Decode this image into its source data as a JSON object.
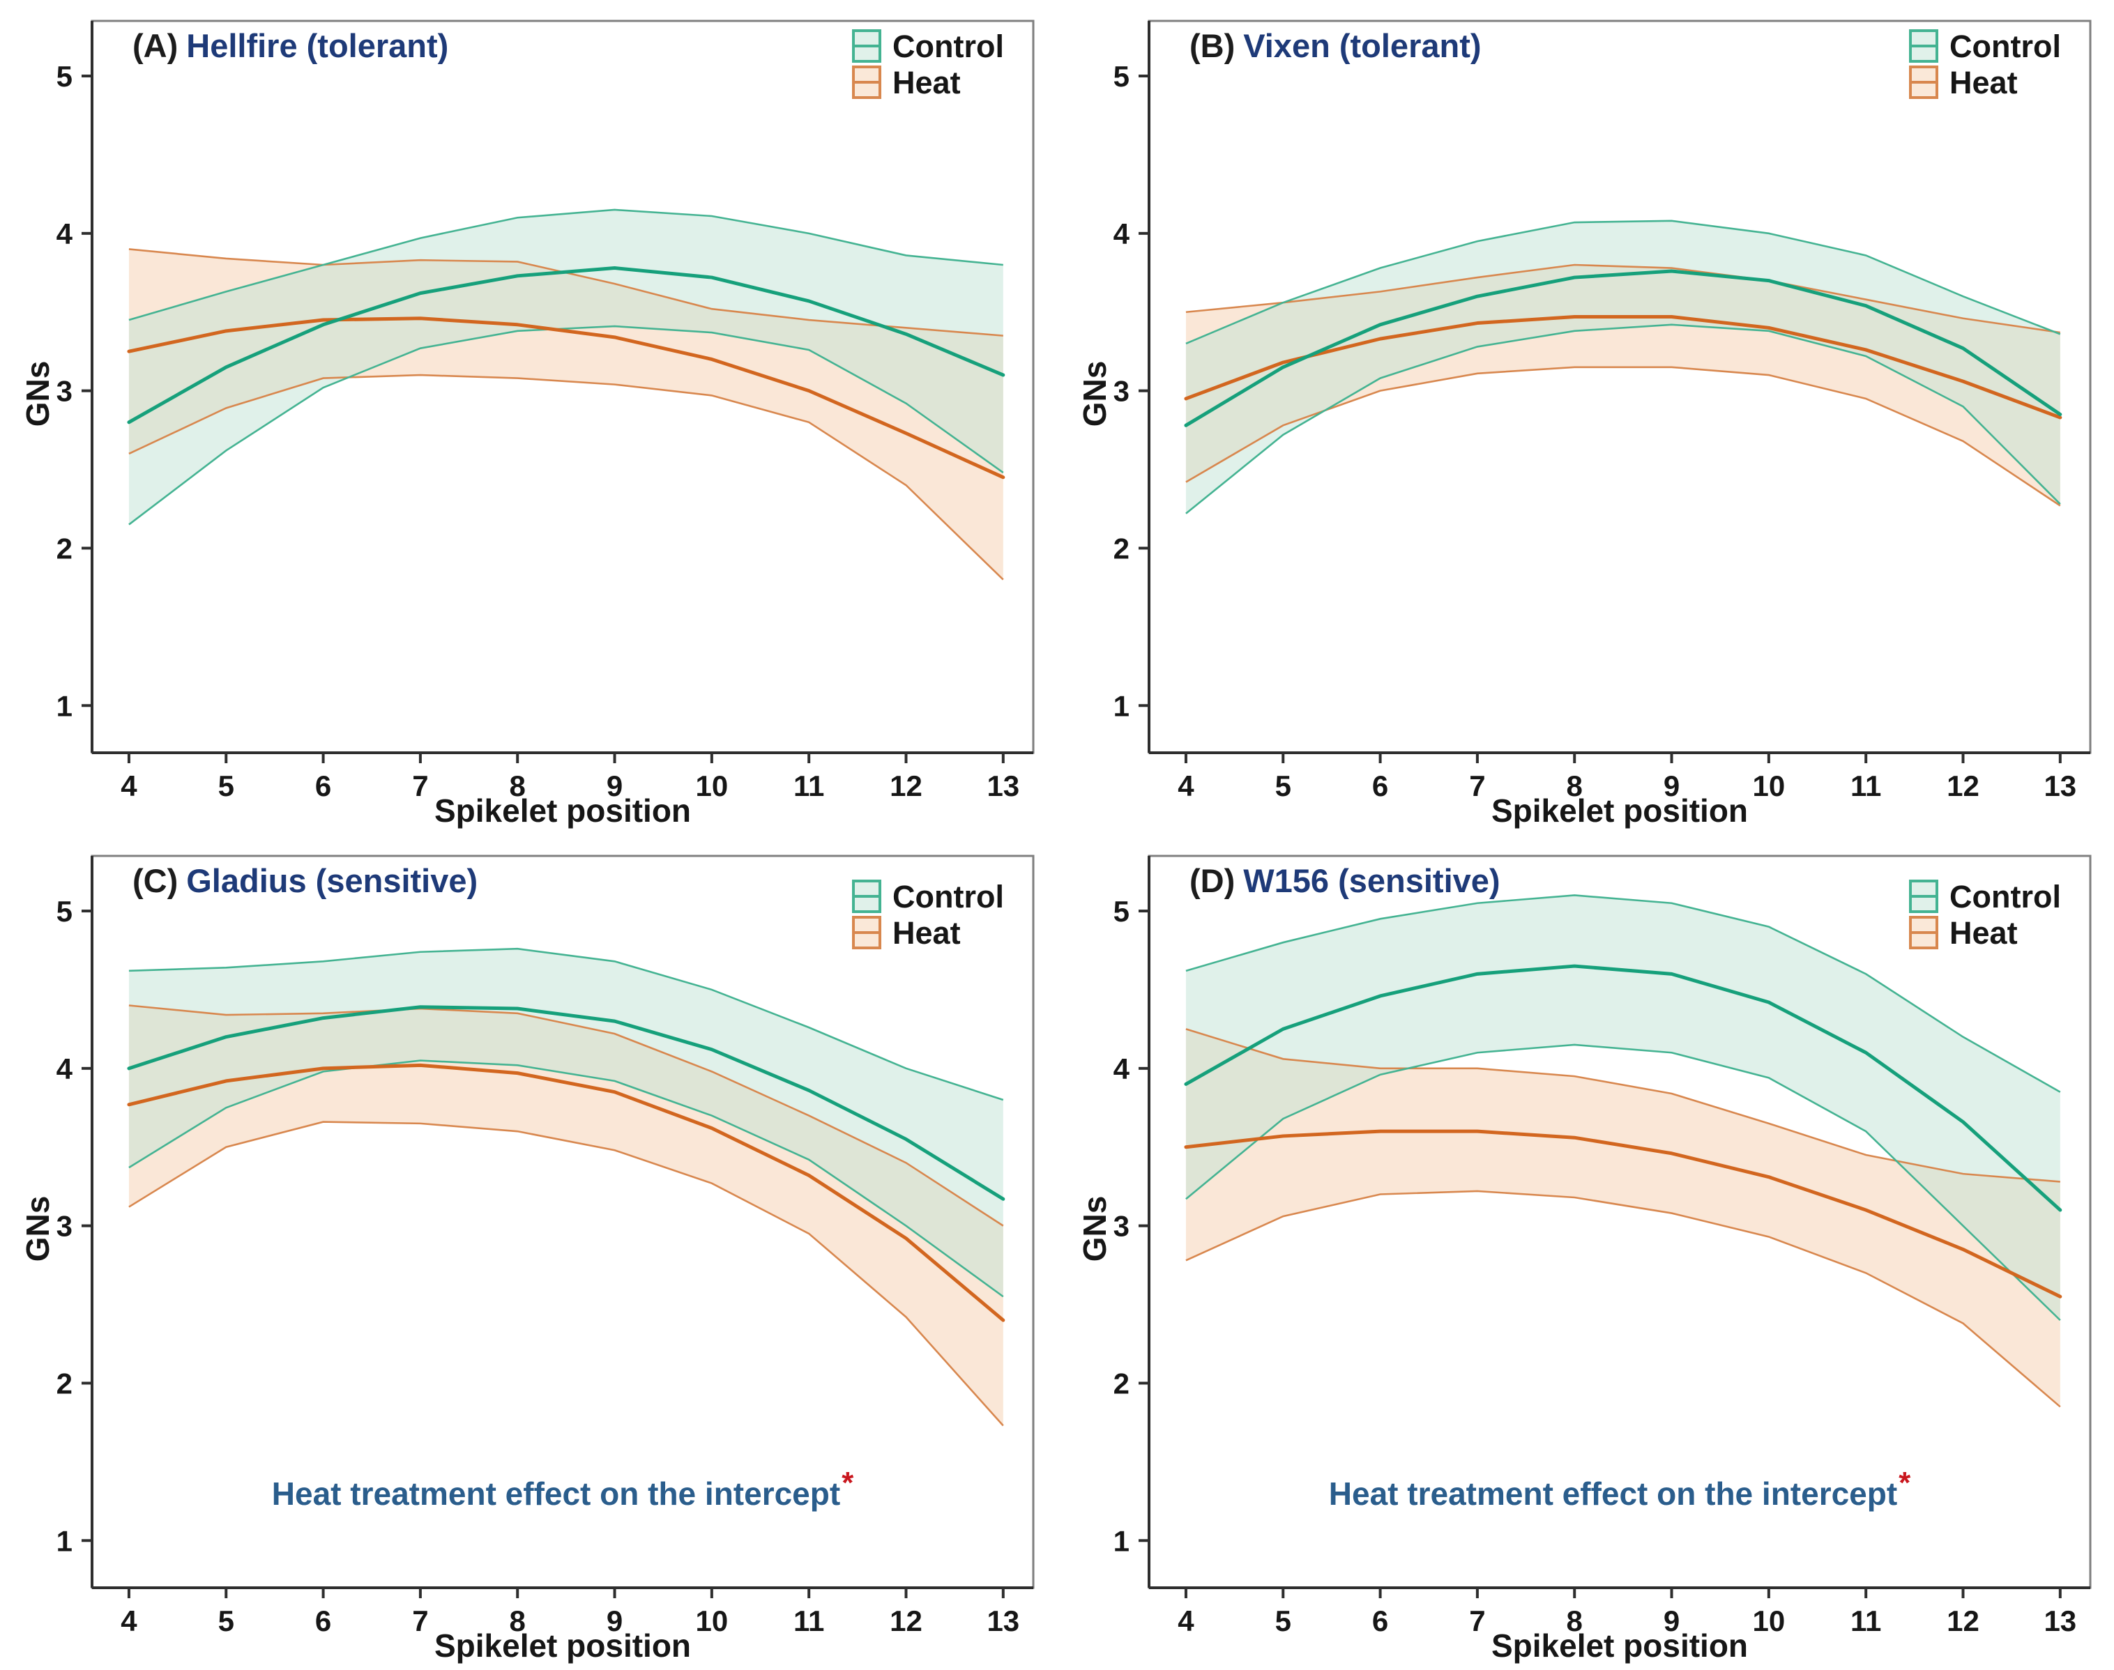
{
  "figure": {
    "ylabel": "GNs",
    "xlabel": "Spikelet position",
    "legend": {
      "control": "Control",
      "heat": "Heat"
    },
    "colors": {
      "control_line": "#16a07b",
      "control_edge": "#44b392",
      "control_fill": "#c2e3d6",
      "control_fill_light": "#e0f1ea",
      "heat_line": "#d2661f",
      "heat_edge": "#d8874e",
      "heat_fill": "#f6d0b0",
      "heat_fill_light": "#fae8d8",
      "panel_border": "#7f7f7f",
      "axis": "#2e2e2e",
      "tick_label": "#161616",
      "title_label_black": "#1c1c1c",
      "title_navy": "#1e3a78",
      "annotation_blue": "#2a5d8c",
      "annotation_star_red": "#c9161d"
    }
  },
  "chart_data": [
    {
      "type": "line",
      "panel_label": "(A)",
      "title": "Hellfire (tolerant)",
      "xlabel": "Spikelet position",
      "ylabel": "GNs",
      "xlim": [
        3.62,
        13.31
      ],
      "ylim": [
        0.7,
        5.35
      ],
      "xticks": [
        4,
        5,
        6,
        7,
        8,
        9,
        10,
        11,
        12,
        13
      ],
      "yticks": [
        1,
        2,
        3,
        4,
        5
      ],
      "grid": false,
      "legend": [
        "Control",
        "Heat"
      ],
      "legend_position": "top-right",
      "x": [
        4,
        5,
        6,
        7,
        8,
        9,
        10,
        11,
        12,
        13
      ],
      "series": [
        {
          "name": "Control",
          "mean": [
            2.8,
            3.15,
            3.42,
            3.62,
            3.73,
            3.78,
            3.72,
            3.57,
            3.36,
            3.1
          ],
          "upper": [
            3.45,
            3.63,
            3.8,
            3.97,
            4.1,
            4.15,
            4.11,
            4.0,
            3.86,
            3.8
          ],
          "lower": [
            2.15,
            2.62,
            3.02,
            3.27,
            3.38,
            3.41,
            3.37,
            3.26,
            2.92,
            2.48
          ]
        },
        {
          "name": "Heat",
          "mean": [
            3.25,
            3.38,
            3.45,
            3.46,
            3.42,
            3.34,
            3.2,
            3.0,
            2.73,
            2.45
          ],
          "upper": [
            3.9,
            3.84,
            3.8,
            3.83,
            3.82,
            3.68,
            3.52,
            3.45,
            3.4,
            3.35
          ],
          "lower": [
            2.6,
            2.89,
            3.08,
            3.1,
            3.08,
            3.04,
            2.97,
            2.8,
            2.4,
            1.8
          ]
        }
      ],
      "annotation": null
    },
    {
      "type": "line",
      "panel_label": "(B)",
      "title": "Vixen (tolerant)",
      "xlabel": "Spikelet position",
      "ylabel": "GNs",
      "xlim": [
        3.62,
        13.31
      ],
      "ylim": [
        0.7,
        5.35
      ],
      "xticks": [
        4,
        5,
        6,
        7,
        8,
        9,
        10,
        11,
        12,
        13
      ],
      "yticks": [
        1,
        2,
        3,
        4,
        5
      ],
      "grid": false,
      "legend": [
        "Control",
        "Heat"
      ],
      "legend_position": "top-right",
      "x": [
        4,
        5,
        6,
        7,
        8,
        9,
        10,
        11,
        12,
        13
      ],
      "series": [
        {
          "name": "Control",
          "mean": [
            2.78,
            3.15,
            3.42,
            3.6,
            3.72,
            3.76,
            3.7,
            3.54,
            3.27,
            2.85
          ],
          "upper": [
            3.3,
            3.56,
            3.78,
            3.95,
            4.07,
            4.08,
            4.0,
            3.86,
            3.6,
            3.36
          ],
          "lower": [
            2.22,
            2.72,
            3.08,
            3.28,
            3.38,
            3.42,
            3.38,
            3.22,
            2.9,
            2.28
          ]
        },
        {
          "name": "Heat",
          "mean": [
            2.95,
            3.18,
            3.33,
            3.43,
            3.47,
            3.47,
            3.4,
            3.26,
            3.06,
            2.83
          ],
          "upper": [
            3.5,
            3.56,
            3.63,
            3.72,
            3.8,
            3.78,
            3.7,
            3.58,
            3.46,
            3.37
          ],
          "lower": [
            2.42,
            2.78,
            3.0,
            3.11,
            3.15,
            3.15,
            3.1,
            2.95,
            2.68,
            2.27
          ]
        }
      ],
      "annotation": null
    },
    {
      "type": "line",
      "panel_label": "(C)",
      "title": "Gladius (sensitive)",
      "xlabel": "Spikelet position",
      "ylabel": "GNs",
      "xlim": [
        3.62,
        13.31
      ],
      "ylim": [
        0.7,
        5.35
      ],
      "xticks": [
        4,
        5,
        6,
        7,
        8,
        9,
        10,
        11,
        12,
        13
      ],
      "yticks": [
        1,
        2,
        3,
        4,
        5
      ],
      "grid": false,
      "legend": [
        "Control",
        "Heat"
      ],
      "legend_position": "top-right",
      "x": [
        4,
        5,
        6,
        7,
        8,
        9,
        10,
        11,
        12,
        13
      ],
      "series": [
        {
          "name": "Control",
          "mean": [
            4.0,
            4.2,
            4.32,
            4.39,
            4.38,
            4.3,
            4.12,
            3.86,
            3.55,
            3.17
          ],
          "upper": [
            4.62,
            4.64,
            4.68,
            4.74,
            4.76,
            4.68,
            4.5,
            4.26,
            4.0,
            3.8
          ],
          "lower": [
            3.37,
            3.75,
            3.98,
            4.05,
            4.02,
            3.92,
            3.7,
            3.42,
            3.0,
            2.55
          ]
        },
        {
          "name": "Heat",
          "mean": [
            3.77,
            3.92,
            4.0,
            4.02,
            3.97,
            3.85,
            3.62,
            3.32,
            2.92,
            2.4
          ],
          "upper": [
            4.4,
            4.34,
            4.35,
            4.38,
            4.35,
            4.22,
            3.98,
            3.7,
            3.4,
            3.0
          ],
          "lower": [
            3.12,
            3.5,
            3.66,
            3.65,
            3.6,
            3.48,
            3.27,
            2.95,
            2.42,
            1.73
          ]
        }
      ],
      "annotation": {
        "text": "Heat treatment effect on the intercept",
        "star": "*"
      }
    },
    {
      "type": "line",
      "panel_label": "(D)",
      "title": "W156 (sensitive)",
      "xlabel": "Spikelet position",
      "ylabel": "GNs",
      "xlim": [
        3.62,
        13.31
      ],
      "ylim": [
        0.7,
        5.35
      ],
      "xticks": [
        4,
        5,
        6,
        7,
        8,
        9,
        10,
        11,
        12,
        13
      ],
      "yticks": [
        1,
        2,
        3,
        4,
        5
      ],
      "grid": false,
      "legend": [
        "Control",
        "Heat"
      ],
      "legend_position": "top-right",
      "x": [
        4,
        5,
        6,
        7,
        8,
        9,
        10,
        11,
        12,
        13
      ],
      "series": [
        {
          "name": "Control",
          "mean": [
            3.9,
            4.25,
            4.46,
            4.6,
            4.65,
            4.6,
            4.42,
            4.1,
            3.66,
            3.1
          ],
          "upper": [
            4.62,
            4.8,
            4.95,
            5.05,
            5.1,
            5.05,
            4.9,
            4.6,
            4.2,
            3.85
          ],
          "lower": [
            3.17,
            3.68,
            3.96,
            4.1,
            4.15,
            4.1,
            3.94,
            3.6,
            3.0,
            2.4
          ]
        },
        {
          "name": "Heat",
          "mean": [
            3.5,
            3.57,
            3.6,
            3.6,
            3.56,
            3.46,
            3.31,
            3.1,
            2.85,
            2.55
          ],
          "upper": [
            4.25,
            4.06,
            4.0,
            4.0,
            3.95,
            3.84,
            3.65,
            3.45,
            3.33,
            3.28
          ],
          "lower": [
            2.78,
            3.06,
            3.2,
            3.22,
            3.18,
            3.08,
            2.93,
            2.7,
            2.38,
            1.85
          ]
        }
      ],
      "annotation": {
        "text": "Heat treatment effect on the intercept",
        "star": "*"
      }
    }
  ]
}
